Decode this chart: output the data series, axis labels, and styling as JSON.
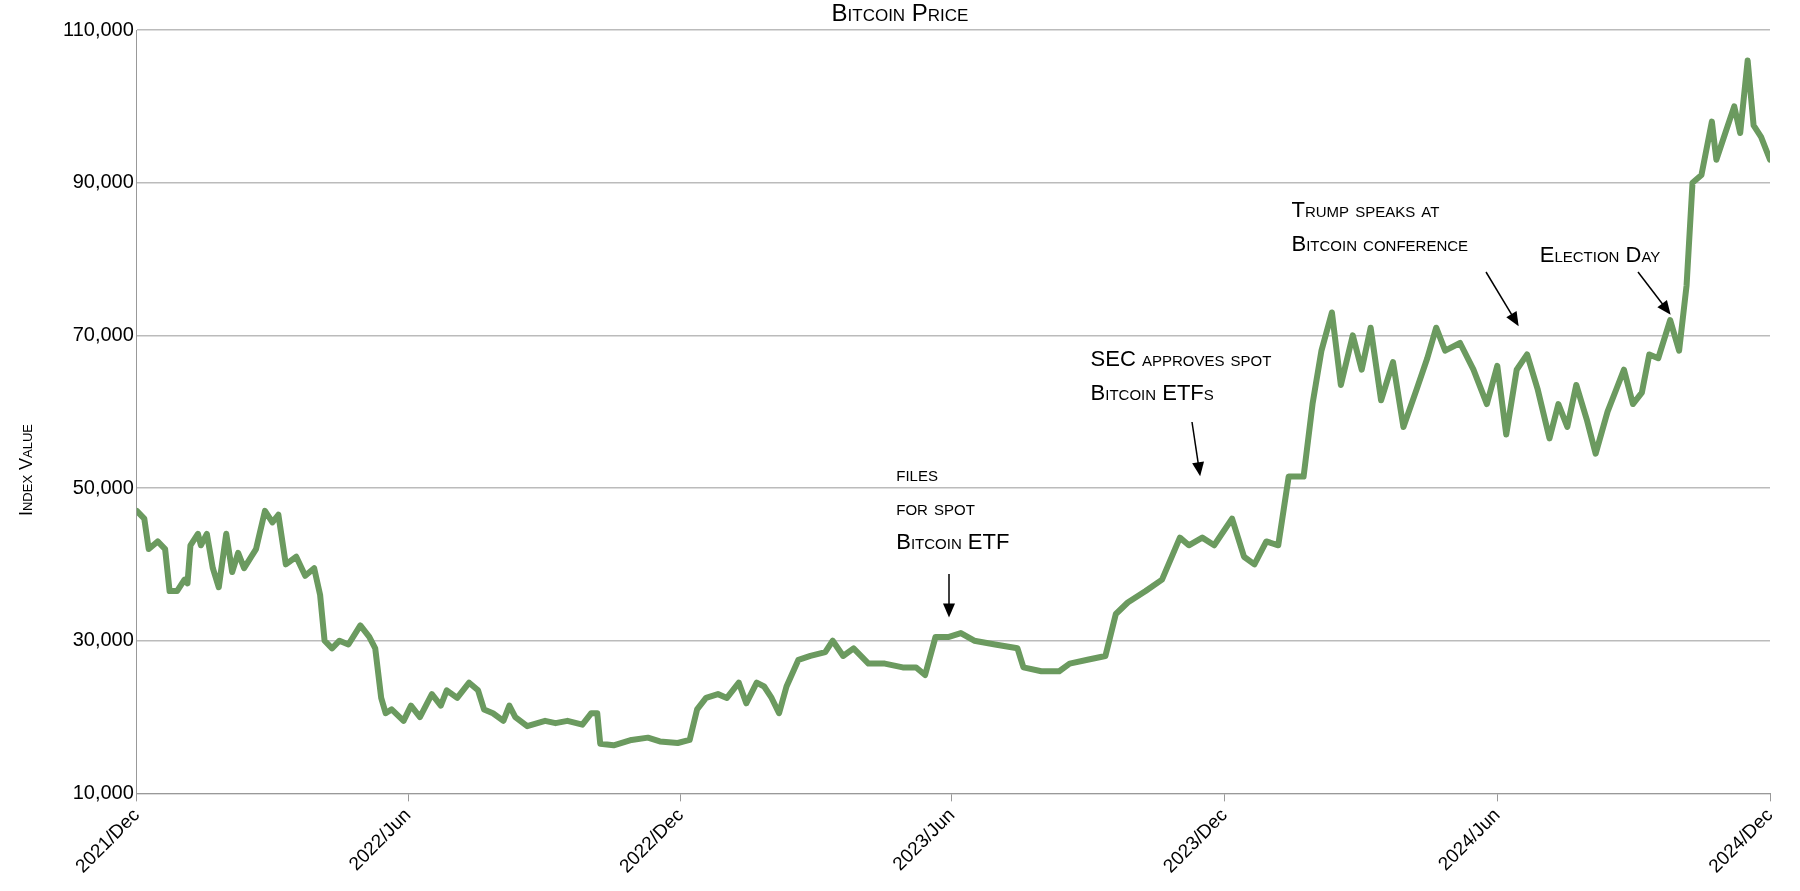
{
  "chart_data": {
    "type": "line",
    "title": "Bitcoin Price",
    "ylabel": "Index Value",
    "x": [
      "2021-12-01",
      "2021-12-06",
      "2021-12-09",
      "2021-12-15",
      "2021-12-20",
      "2021-12-23",
      "2021-12-28",
      "2022-01-02",
      "2022-01-04",
      "2022-01-06",
      "2022-01-11",
      "2022-01-13",
      "2022-01-17",
      "2022-01-21",
      "2022-01-25",
      "2022-01-30",
      "2022-02-03",
      "2022-02-07",
      "2022-02-11",
      "2022-02-19",
      "2022-02-25",
      "2022-03-02",
      "2022-03-06",
      "2022-03-11",
      "2022-03-18",
      "2022-03-24",
      "2022-03-30",
      "2022-04-03",
      "2022-04-06",
      "2022-04-11",
      "2022-04-16",
      "2022-04-22",
      "2022-04-30",
      "2022-05-06",
      "2022-05-10",
      "2022-05-14",
      "2022-05-17",
      "2022-05-21",
      "2022-05-29",
      "2022-06-03",
      "2022-06-09",
      "2022-06-17",
      "2022-06-23",
      "2022-06-27",
      "2022-07-04",
      "2022-07-12",
      "2022-07-18",
      "2022-07-22",
      "2022-07-28",
      "2022-08-04",
      "2022-08-08",
      "2022-08-12",
      "2022-08-20",
      "2022-09-01",
      "2022-09-08",
      "2022-09-16",
      "2022-09-26",
      "2022-10-02",
      "2022-10-06",
      "2022-10-08",
      "2022-10-17",
      "2022-10-29",
      "2022-11-09",
      "2022-11-17",
      "2022-11-29",
      "2022-12-07",
      "2022-12-12",
      "2022-12-18",
      "2022-12-26",
      "2023-01-01",
      "2023-01-09",
      "2023-01-14",
      "2023-01-21",
      "2023-01-26",
      "2023-01-31",
      "2023-02-05",
      "2023-02-10",
      "2023-02-18",
      "2023-02-26",
      "2023-03-08",
      "2023-03-13",
      "2023-03-20",
      "2023-03-27",
      "2023-04-06",
      "2023-04-17",
      "2023-04-29",
      "2023-05-08",
      "2023-05-14",
      "2023-05-21",
      "2023-05-30",
      "2023-06-07",
      "2023-06-16",
      "2023-06-30",
      "2023-07-15",
      "2023-07-19",
      "2023-07-31",
      "2023-08-12",
      "2023-08-19",
      "2023-08-31",
      "2023-09-12",
      "2023-09-19",
      "2023-09-27",
      "2023-10-09",
      "2023-10-20",
      "2023-11-01",
      "2023-11-07",
      "2023-11-16",
      "2023-11-24",
      "2023-12-06",
      "2023-12-14",
      "2023-12-21",
      "2023-12-29",
      "2024-01-06",
      "2024-01-13",
      "2024-01-23",
      "2024-01-29",
      "2024-02-04",
      "2024-02-11",
      "2024-02-17",
      "2024-02-25",
      "2024-03-02",
      "2024-03-08",
      "2024-03-15",
      "2024-03-23",
      "2024-03-30",
      "2024-04-08",
      "2024-04-15",
      "2024-04-21",
      "2024-04-27",
      "2024-05-07",
      "2024-05-16",
      "2024-05-25",
      "2024-06-01",
      "2024-06-07",
      "2024-06-14",
      "2024-06-21",
      "2024-06-28",
      "2024-07-06",
      "2024-07-12",
      "2024-07-18",
      "2024-07-24",
      "2024-07-31",
      "2024-08-06",
      "2024-08-14",
      "2024-08-20",
      "2024-08-25",
      "2024-08-31",
      "2024-09-06",
      "2024-09-11",
      "2024-09-17",
      "2024-09-25",
      "2024-10-01",
      "2024-10-06",
      "2024-10-10",
      "2024-10-16",
      "2024-10-23",
      "2024-10-26",
      "2024-11-01",
      "2024-11-07",
      "2024-11-11",
      "2024-11-16",
      "2024-11-20",
      "2024-11-25",
      "2024-12-01"
    ],
    "series": [
      {
        "color": "#6b9a5f",
        "values": [
          47000,
          46000,
          42000,
          43000,
          42000,
          36500,
          36500,
          38000,
          37500,
          42500,
          44000,
          42500,
          44000,
          39500,
          37000,
          44000,
          39000,
          41500,
          39500,
          42000,
          47000,
          45500,
          46500,
          40000,
          41000,
          38500,
          39500,
          36000,
          30000,
          29000,
          30000,
          29500,
          32000,
          30500,
          29000,
          22500,
          20500,
          21000,
          19500,
          21500,
          20000,
          23000,
          21500,
          23500,
          22500,
          24500,
          23500,
          21000,
          20500,
          19500,
          21500,
          20000,
          18800,
          19500,
          19200,
          19500,
          19000,
          20500,
          20500,
          16500,
          16300,
          17000,
          17300,
          16800,
          16600,
          17000,
          21000,
          22500,
          23000,
          22500,
          24500,
          21800,
          24500,
          24000,
          22500,
          20500,
          24000,
          27500,
          28000,
          28500,
          30000,
          28000,
          29000,
          27000,
          27000,
          26500,
          26500,
          25500,
          30500,
          30500,
          31000,
          30000,
          29500,
          29000,
          26500,
          26000,
          26000,
          27000,
          27500,
          28000,
          33500,
          35000,
          36500,
          38000,
          43500,
          42500,
          43500,
          42500,
          46000,
          41000,
          40000,
          43000,
          42500,
          51500,
          51500,
          61000,
          68000,
          73000,
          63500,
          70000,
          65500,
          71000,
          61500,
          66500,
          58000,
          63000,
          67000,
          71000,
          68000,
          69000,
          65500,
          61000,
          66000,
          57000,
          65500,
          67500,
          63000,
          56500,
          61000,
          58000,
          63500,
          59000,
          54500,
          60000,
          63000,
          65500,
          61000,
          62500,
          67500,
          67000,
          72000,
          68000,
          76500,
          90000,
          91000,
          98000,
          93000,
          96500,
          100000,
          96500,
          106000,
          97500,
          96000,
          93000
        ]
      }
    ],
    "xlim": [
      "2021-12-01",
      "2024-12-01"
    ],
    "xticks": [
      {
        "value": "2021-12-01",
        "label": "2021/Dec"
      },
      {
        "value": "2022-06-01",
        "label": "2022/Jun"
      },
      {
        "value": "2022-12-01",
        "label": "2022/Dec"
      },
      {
        "value": "2023-06-01",
        "label": "2023/Jun"
      },
      {
        "value": "2023-12-01",
        "label": "2023/Dec"
      },
      {
        "value": "2024-06-01",
        "label": "2024/Jun"
      },
      {
        "value": "2024-12-01",
        "label": "2024/Dec"
      }
    ],
    "ylim": [
      10000,
      110000
    ],
    "yticks": [
      {
        "value": 10000,
        "label": "10,000"
      },
      {
        "value": 30000,
        "label": "30,000"
      },
      {
        "value": 50000,
        "label": "50,000"
      },
      {
        "value": 70000,
        "label": "70,000"
      },
      {
        "value": 90000,
        "label": "90,000"
      },
      {
        "value": 110000,
        "label": "110,000"
      }
    ],
    "grid": "y",
    "legend": false,
    "marker": "none",
    "line_style": "solid",
    "annotations": [
      "files\nfor spot\nBitcoin ETF",
      "SEC approves spot\nBitcoin ETFs",
      "Trump speaks at\nBitcoin conference",
      "Election Day"
    ]
  }
}
